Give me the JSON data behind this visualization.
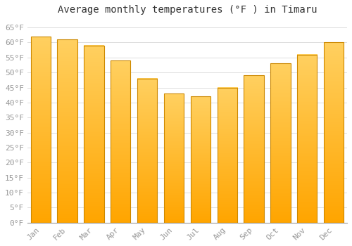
{
  "title": "Average monthly temperatures (°F ) in Timaru",
  "months": [
    "Jan",
    "Feb",
    "Mar",
    "Apr",
    "May",
    "Jun",
    "Jul",
    "Aug",
    "Sep",
    "Oct",
    "Nov",
    "Dec"
  ],
  "values": [
    62,
    61,
    59,
    54,
    48,
    43,
    42,
    45,
    49,
    53,
    56,
    60
  ],
  "bar_color_top": "#FFD060",
  "bar_color_bottom": "#FFA500",
  "bar_edge_color": "#CC8800",
  "background_color": "#FFFFFF",
  "plot_bg_color": "#FFFFFF",
  "grid_color": "#DDDDDD",
  "ylim": [
    0,
    68
  ],
  "yticks": [
    0,
    5,
    10,
    15,
    20,
    25,
    30,
    35,
    40,
    45,
    50,
    55,
    60,
    65
  ],
  "ytick_labels": [
    "0°F",
    "5°F",
    "10°F",
    "15°F",
    "20°F",
    "25°F",
    "30°F",
    "35°F",
    "40°F",
    "45°F",
    "50°F",
    "55°F",
    "60°F",
    "65°F"
  ],
  "title_fontsize": 10,
  "tick_fontsize": 8,
  "font_family": "monospace",
  "tick_color": "#999999",
  "title_color": "#333333"
}
